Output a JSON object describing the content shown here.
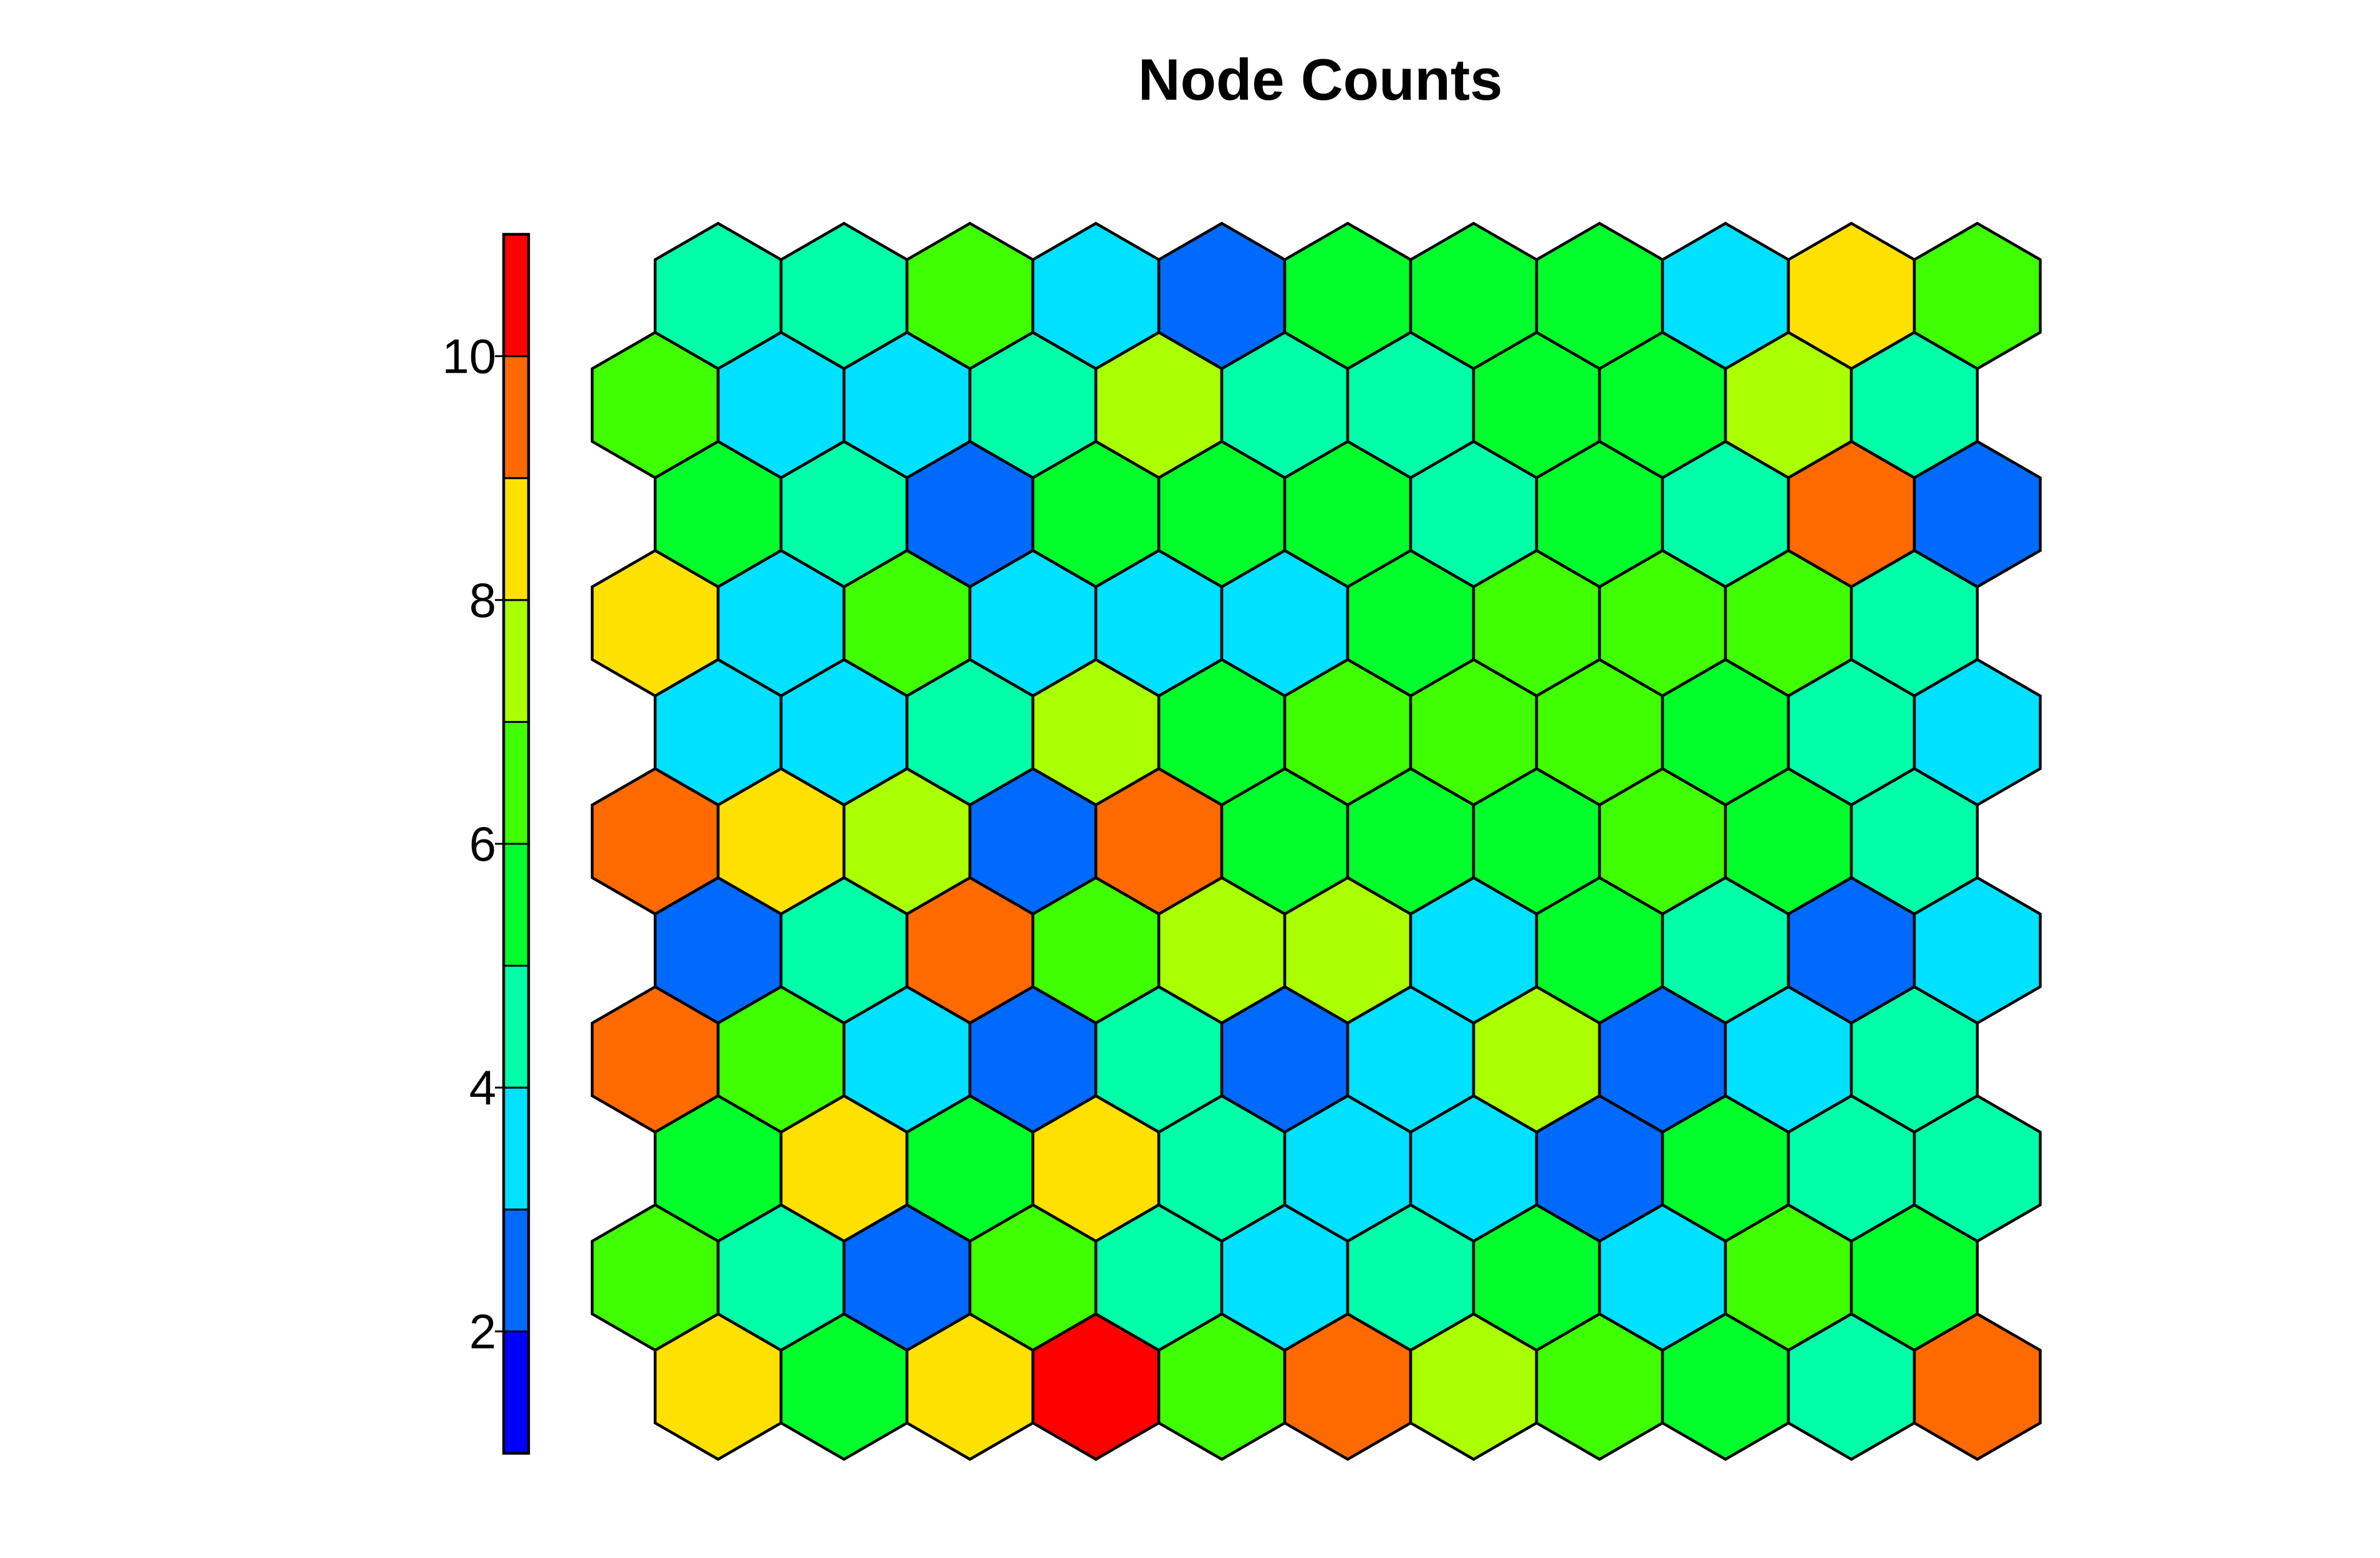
{
  "chart_data": {
    "type": "heatmap",
    "subtype": "hexagonal-som-grid",
    "title": "Node Counts",
    "grid": false,
    "colorbar": {
      "placement": "left",
      "range": [
        1,
        11
      ],
      "tick_values": [
        2,
        4,
        6,
        8,
        10
      ],
      "tick_labels": [
        "2",
        "4",
        "6",
        "8",
        "10"
      ],
      "colors": [
        "#0000ff",
        "#006aff",
        "#00e1ff",
        "#00ffa8",
        "#00ff2b",
        "#40ff00",
        "#aaff00",
        "#ffe100",
        "#ff6a00",
        "#ff0000"
      ]
    },
    "rows_top_to_bottom": [
      [
        4,
        4,
        6,
        3,
        2,
        5,
        5,
        5,
        3,
        8,
        6
      ],
      [
        6,
        3,
        3,
        4,
        7,
        4,
        4,
        5,
        5,
        7,
        4
      ],
      [
        5,
        4,
        2,
        5,
        5,
        5,
        4,
        5,
        4,
        9,
        2
      ],
      [
        8,
        3,
        6,
        3,
        3,
        3,
        5,
        6,
        6,
        6,
        4
      ],
      [
        3,
        3,
        4,
        7,
        5,
        6,
        6,
        6,
        5,
        4,
        3
      ],
      [
        9,
        8,
        7,
        2,
        9,
        5,
        5,
        5,
        6,
        5,
        4
      ],
      [
        2,
        4,
        9,
        6,
        7,
        7,
        3,
        5,
        4,
        2,
        3
      ],
      [
        9,
        6,
        3,
        2,
        4,
        2,
        3,
        7,
        2,
        3,
        4
      ],
      [
        5,
        8,
        5,
        8,
        4,
        3,
        3,
        2,
        5,
        4,
        4
      ],
      [
        6,
        4,
        2,
        6,
        4,
        3,
        4,
        5,
        3,
        6,
        5
      ],
      [
        8,
        5,
        8,
        11,
        6,
        9,
        7,
        6,
        5,
        4,
        9
      ]
    ]
  }
}
